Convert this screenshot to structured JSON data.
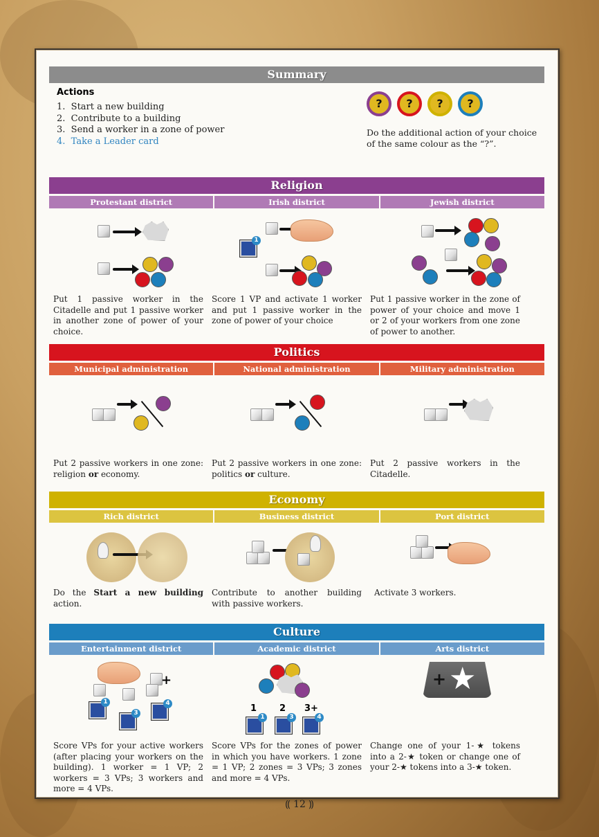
{
  "summary": {
    "title": "Summary",
    "actions_heading": "Actions",
    "actions": [
      {
        "num": "1.",
        "text": "Start a new building"
      },
      {
        "num": "2.",
        "text": "Contribute to a building"
      },
      {
        "num": "3.",
        "text": "Send a worker in a zone of power"
      },
      {
        "num": "4.",
        "text": "Take a Leader card"
      }
    ],
    "tokens": [
      "?",
      "?",
      "?",
      "?"
    ],
    "additional_text": "Do the additional action of your choice of the same colour as the “?”."
  },
  "sections": [
    {
      "title": "Religion",
      "color": "#8b3f8f",
      "sub_color": "#b07ab5",
      "districts": [
        {
          "name": "Protestant district",
          "text": "Put 1 passive worker in the Citadelle and put 1 passive worker in another zone of power of your choice."
        },
        {
          "name": "Irish district",
          "text": "Score 1 VP and activate 1 worker and put 1 passive worker in the zone of power of your choice",
          "badge": "1"
        },
        {
          "name": "Jewish district",
          "text": "Put 1 passive worker in the zone of power of your choice and move 1 or 2 of your workers from one zone of power to another."
        }
      ]
    },
    {
      "title": "Politics",
      "color": "#d7141e",
      "sub_color": "#e0603e",
      "districts": [
        {
          "name": "Municipal administration",
          "text_a": "Put 2 passive workers in one zone: religion ",
          "text_or": "or",
          "text_b": " economy."
        },
        {
          "name": "National administration",
          "text_a": "Put 2 passive workers in one zone: politics ",
          "text_or": "or",
          "text_b": " culture."
        },
        {
          "name": "Military administration",
          "text": "Put 2 passive workers in the Citadelle."
        }
      ]
    },
    {
      "title": "Economy",
      "color": "#cfb200",
      "sub_color": "#dcc440",
      "districts": [
        {
          "name": "Rich district",
          "text_a": "Do the ",
          "text_bold": "Start a new building",
          "text_b": " action."
        },
        {
          "name": "Business district",
          "text": "Contribute to another building with passive workers."
        },
        {
          "name": "Port district",
          "text": "Activate 3 workers."
        }
      ]
    },
    {
      "title": "Culture",
      "color": "#1d7fbb",
      "sub_color": "#6a9ccb",
      "districts": [
        {
          "name": "Entertainment district",
          "text": "Score VPs for your active workers (after placing your workers on the building). 1 worker = 1 VP; 2 workers = 3 VPs; 3 workers and more = 4 VPs.",
          "badges": [
            "1",
            "3",
            "4"
          ],
          "plus": "+"
        },
        {
          "name": "Academic district",
          "text": "Score VPs for the zones of power in which you have workers. 1 zone = 1 VP; 2 zones = 3 VPs; 3 zones and more = 4 VPs.",
          "levels": [
            "1",
            "2",
            "3+"
          ],
          "badges": [
            "1",
            "3",
            "4"
          ]
        },
        {
          "name": "Arts district",
          "text": "Change one of your 1-★ tokens into a 2-★ token or change one of your 2-★ tokens into a 3-★ token.",
          "plus": "+",
          "star": "★"
        }
      ]
    }
  ],
  "page_number": "12"
}
